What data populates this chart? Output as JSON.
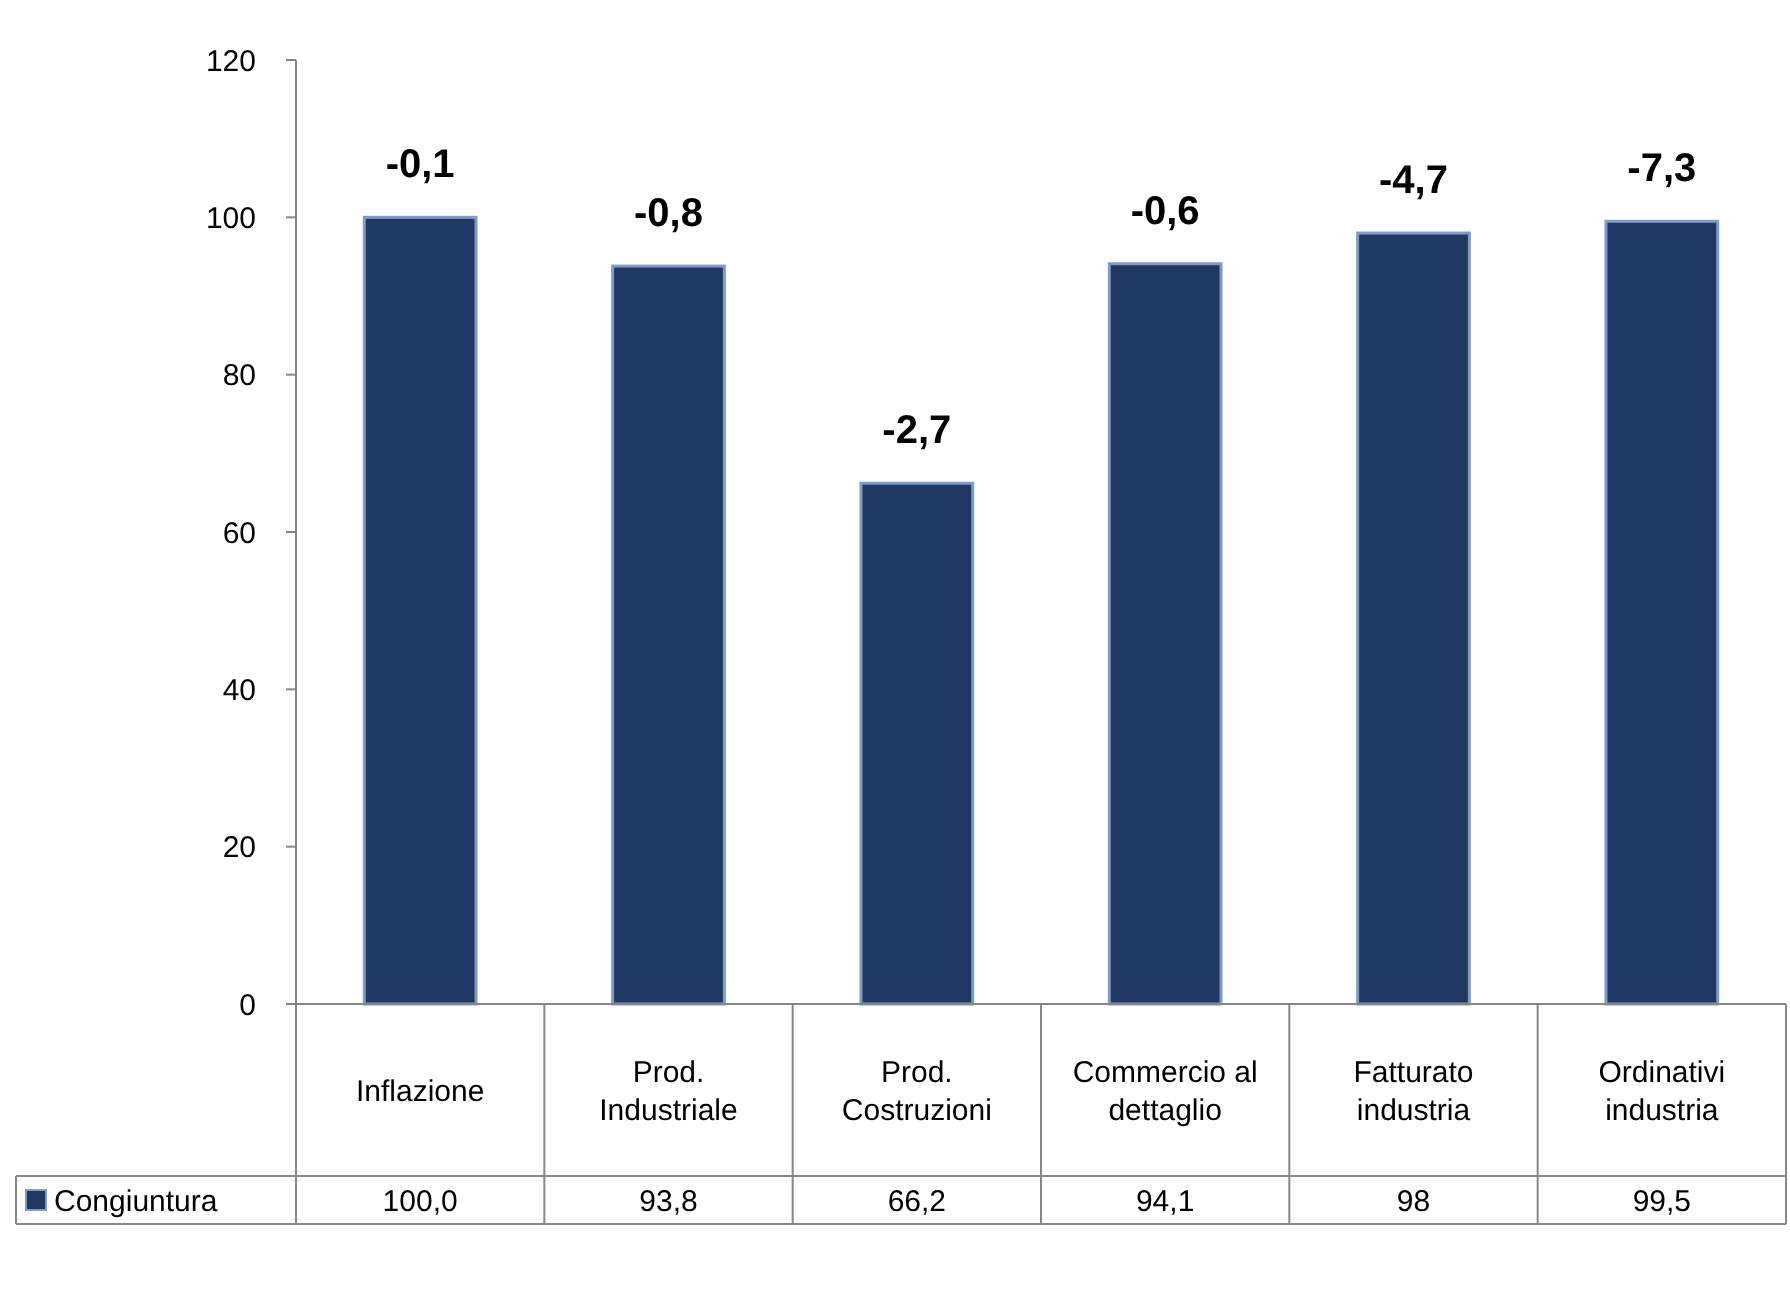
{
  "chart_data": {
    "type": "bar",
    "categories": [
      "Inflazione",
      "Prod. Industriale",
      "Prod. Costruzioni",
      "Commercio al dettaglio",
      "Fatturato industria",
      "Ordinativi industria"
    ],
    "series": [
      {
        "name": "Congiuntura",
        "color": "#1f3864",
        "values": [
          100.0,
          93.8,
          66.2,
          94.1,
          98,
          99.5
        ],
        "value_labels": [
          "100,0",
          "93,8",
          "66,2",
          "94,1",
          "98",
          "99,5"
        ]
      }
    ],
    "ylim": [
      0,
      120
    ],
    "yticks": [
      0,
      20,
      40,
      60,
      80,
      100,
      120
    ],
    "grid": false,
    "legend": "bottom left",
    "annotations": [
      {
        "text": "-0,1",
        "x": "Inflazione",
        "y": 100.0
      },
      {
        "text": "-0,8",
        "x": "Prod. Industriale",
        "y": 93.8
      },
      {
        "text": "-2,7",
        "x": "Prod. Costruzioni",
        "y": 66.2
      },
      {
        "text": "-0,6",
        "x": "Commercio al dettaglio",
        "y": 94.1
      },
      {
        "text": "-4,7",
        "x": "Fatturato industria",
        "y": 98
      },
      {
        "text": "-7,3",
        "x": "Ordinativi industria",
        "y": 99.5
      }
    ]
  }
}
